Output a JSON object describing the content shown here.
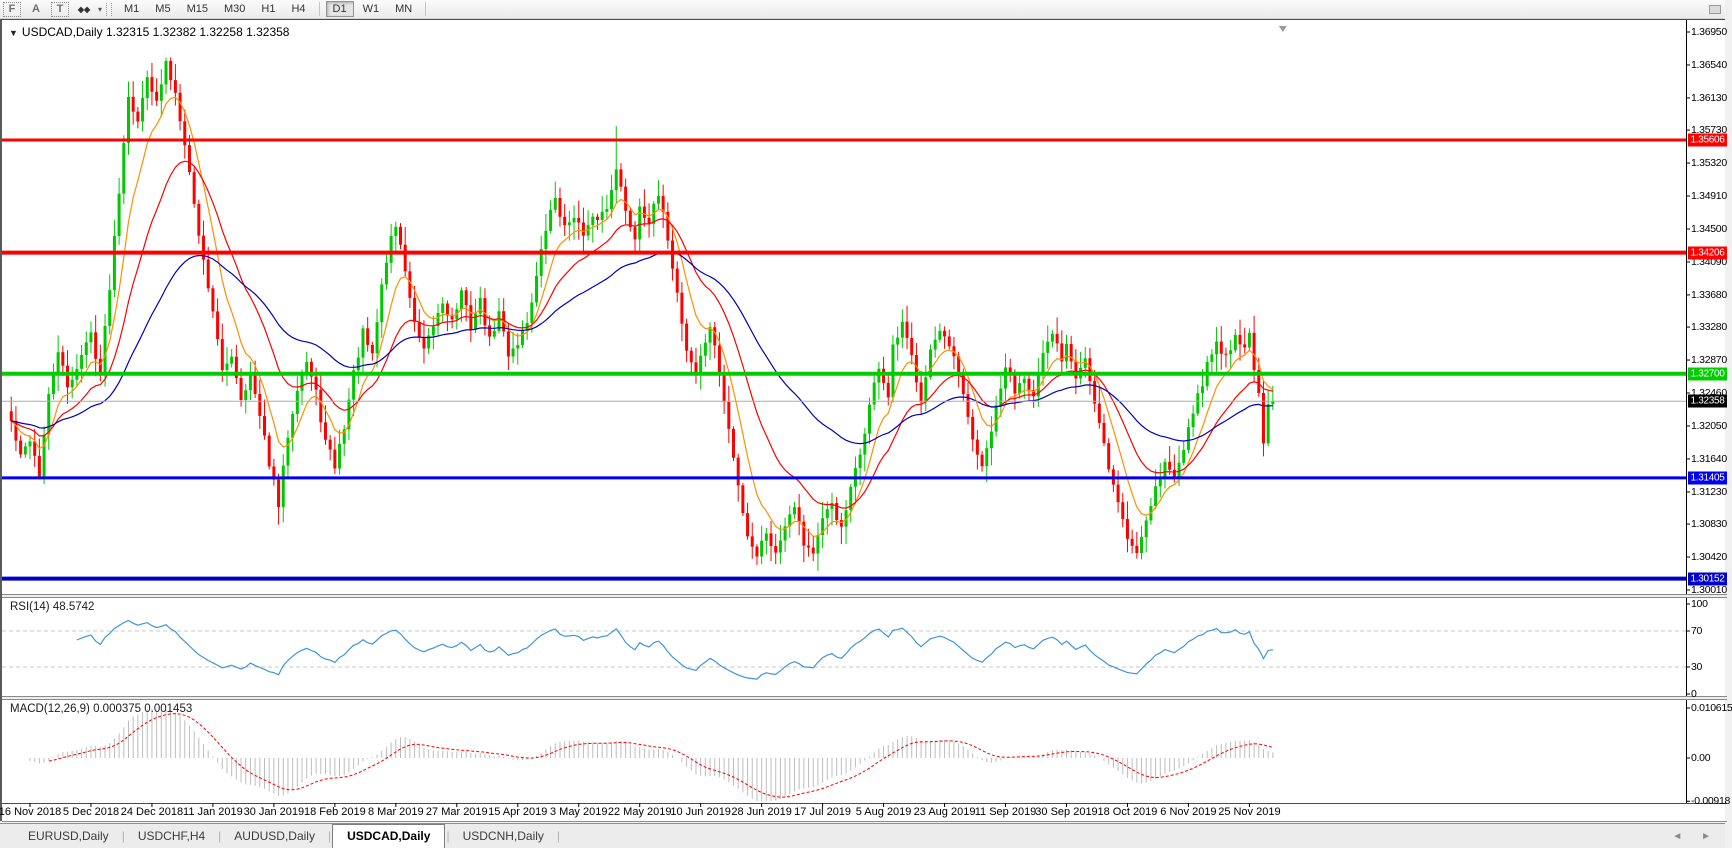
{
  "toolbar": {
    "icons": [
      {
        "name": "fibonacci-grid-icon",
        "glyph": "F"
      },
      {
        "name": "text-a-icon",
        "glyph": "A"
      },
      {
        "name": "text-label-icon",
        "glyph": "T"
      },
      {
        "name": "shapes-icon",
        "glyph": "◆◆"
      },
      {
        "name": "dropdown-caret",
        "glyph": "▾"
      }
    ],
    "timeframes": [
      "M1",
      "M5",
      "M15",
      "M30",
      "H1",
      "H4",
      "D1",
      "W1",
      "MN"
    ],
    "active_timeframe": "D1"
  },
  "chart": {
    "title_symbol": "USDCAD,Daily",
    "title_ohlc": "1.32315 1.32382 1.32258 1.32358",
    "dropdown_glyph": "▼"
  },
  "chart_data": {
    "type": "candlestick",
    "symbol": "USDCAD",
    "timeframe": "Daily",
    "quote": {
      "open": 1.32315,
      "high": 1.32382,
      "low": 1.32258,
      "close": 1.32358
    },
    "y_axis": {
      "top": 1.3695,
      "bottom": 1.3001,
      "tick_labels": [
        "1.36950",
        "1.36540",
        "1.36130",
        "1.35730",
        "1.35320",
        "1.34910",
        "1.34500",
        "1.34090",
        "1.33680",
        "1.33280",
        "1.32870",
        "1.32460",
        "1.32050",
        "1.31640",
        "1.31230",
        "1.30830",
        "1.30420",
        "1.30010"
      ]
    },
    "x_axis": {
      "tick_labels": [
        "16 Nov 2018",
        "5 Dec 2018",
        "24 Dec 2018",
        "11 Jan 2019",
        "30 Jan 2019",
        "18 Feb 2019",
        "8 Mar 2019",
        "27 Mar 2019",
        "15 Apr 2019",
        "3 May 2019",
        "22 May 2019",
        "10 Jun 2019",
        "28 Jun 2019",
        "17 Jul 2019",
        "5 Aug 2019",
        "23 Aug 2019",
        "11 Sep 2019",
        "30 Sep 2019",
        "18 Oct 2019",
        "6 Nov 2019",
        "25 Nov 2019"
      ],
      "bars_per_tick": 13,
      "first_tick_bar": 4
    },
    "num_bars": 270,
    "close_anchors": [
      [
        0,
        1.321
      ],
      [
        2,
        1.3165
      ],
      [
        4,
        1.319
      ],
      [
        6,
        1.3145
      ],
      [
        8,
        1.324
      ],
      [
        10,
        1.33
      ],
      [
        12,
        1.325
      ],
      [
        14,
        1.328
      ],
      [
        17,
        1.332
      ],
      [
        19,
        1.327
      ],
      [
        21,
        1.338
      ],
      [
        23,
        1.35
      ],
      [
        25,
        1.362
      ],
      [
        27,
        1.358
      ],
      [
        29,
        1.3645
      ],
      [
        31,
        1.3605
      ],
      [
        33,
        1.3655
      ],
      [
        35,
        1.362
      ],
      [
        37,
        1.356
      ],
      [
        39,
        1.348
      ],
      [
        41,
        1.341
      ],
      [
        43,
        1.335
      ],
      [
        45,
        1.327
      ],
      [
        47,
        1.3295
      ],
      [
        49,
        1.324
      ],
      [
        51,
        1.327
      ],
      [
        53,
        1.3215
      ],
      [
        55,
        1.316
      ],
      [
        57,
        1.3105
      ],
      [
        59,
        1.3195
      ],
      [
        61,
        1.3255
      ],
      [
        63,
        1.3285
      ],
      [
        65,
        1.3245
      ],
      [
        67,
        1.3185
      ],
      [
        69,
        1.3155
      ],
      [
        71,
        1.3205
      ],
      [
        73,
        1.327
      ],
      [
        75,
        1.332
      ],
      [
        77,
        1.329
      ],
      [
        79,
        1.338
      ],
      [
        81,
        1.344
      ],
      [
        82,
        1.3455
      ],
      [
        84,
        1.34
      ],
      [
        86,
        1.333
      ],
      [
        88,
        1.3295
      ],
      [
        90,
        1.333
      ],
      [
        92,
        1.336
      ],
      [
        94,
        1.3335
      ],
      [
        96,
        1.337
      ],
      [
        98,
        1.333
      ],
      [
        100,
        1.336
      ],
      [
        102,
        1.331
      ],
      [
        104,
        1.3345
      ],
      [
        106,
        1.3295
      ],
      [
        108,
        1.331
      ],
      [
        110,
        1.3335
      ],
      [
        112,
        1.339
      ],
      [
        114,
        1.345
      ],
      [
        116,
        1.349
      ],
      [
        118,
        1.345
      ],
      [
        120,
        1.347
      ],
      [
        122,
        1.344
      ],
      [
        124,
        1.346
      ],
      [
        127,
        1.3475
      ],
      [
        129,
        1.353
      ],
      [
        131,
        1.347
      ],
      [
        133,
        1.344
      ],
      [
        134,
        1.348
      ],
      [
        136,
        1.346
      ],
      [
        138,
        1.349
      ],
      [
        140,
        1.344
      ],
      [
        142,
        1.337
      ],
      [
        144,
        1.33
      ],
      [
        146,
        1.327
      ],
      [
        147,
        1.329
      ],
      [
        149,
        1.333
      ],
      [
        151,
        1.327
      ],
      [
        153,
        1.32
      ],
      [
        155,
        1.313
      ],
      [
        157,
        1.307
      ],
      [
        159,
        1.3045
      ],
      [
        161,
        1.3075
      ],
      [
        163,
        1.3045
      ],
      [
        165,
        1.3085
      ],
      [
        167,
        1.311
      ],
      [
        169,
        1.306
      ],
      [
        171,
        1.3048
      ],
      [
        173,
        1.3085
      ],
      [
        175,
        1.311
      ],
      [
        177,
        1.3075
      ],
      [
        179,
        1.3125
      ],
      [
        181,
        1.317
      ],
      [
        183,
        1.323
      ],
      [
        185,
        1.328
      ],
      [
        187,
        1.324
      ],
      [
        188,
        1.33
      ],
      [
        190,
        1.333
      ],
      [
        192,
        1.329
      ],
      [
        194,
        1.324
      ],
      [
        196,
        1.33
      ],
      [
        198,
        1.332
      ],
      [
        199,
        1.331
      ],
      [
        201,
        1.329
      ],
      [
        203,
        1.324
      ],
      [
        205,
        1.319
      ],
      [
        207,
        1.315
      ],
      [
        209,
        1.32
      ],
      [
        211,
        1.325
      ],
      [
        212,
        1.328
      ],
      [
        214,
        1.325
      ],
      [
        216,
        1.327
      ],
      [
        218,
        1.324
      ],
      [
        220,
        1.329
      ],
      [
        222,
        1.332
      ],
      [
        224,
        1.329
      ],
      [
        225,
        1.331
      ],
      [
        227,
        1.327
      ],
      [
        229,
        1.329
      ],
      [
        231,
        1.323
      ],
      [
        233,
        1.318
      ],
      [
        235,
        1.313
      ],
      [
        237,
        1.309
      ],
      [
        238,
        1.3065
      ],
      [
        240,
        1.3048
      ],
      [
        242,
        1.309
      ],
      [
        244,
        1.313
      ],
      [
        246,
        1.316
      ],
      [
        248,
        1.314
      ],
      [
        250,
        1.318
      ],
      [
        251,
        1.321
      ],
      [
        253,
        1.324
      ],
      [
        255,
        1.328
      ],
      [
        257,
        1.331
      ],
      [
        259,
        1.329
      ],
      [
        261,
        1.332
      ],
      [
        263,
        1.33
      ],
      [
        264,
        1.332
      ],
      [
        265,
        1.328
      ],
      [
        266,
        1.324
      ],
      [
        267,
        1.318
      ],
      [
        268,
        1.323
      ],
      [
        269,
        1.32358
      ]
    ],
    "wick_overrides": {
      "33": {
        "high": 1.3663
      },
      "129": {
        "high": 1.3578
      },
      "162": {
        "low": 1.3037
      },
      "240": {
        "low": 1.304
      }
    },
    "wick_seed": 42,
    "candle_up_color": "#00C800",
    "candle_down_color": "#FF0000",
    "moving_averages": [
      {
        "period": 8,
        "color": "#FF9000"
      },
      {
        "period": 20,
        "color": "#FF0000"
      },
      {
        "period": 50,
        "color": "#0000BB"
      }
    ],
    "hlines": [
      {
        "price": 1.35606,
        "label": "1.35606",
        "color": "#FF0000",
        "width": 3
      },
      {
        "price": 1.34206,
        "label": "1.34206",
        "color": "#FF0000",
        "width": 4
      },
      {
        "price": 1.327,
        "label": "1.32700",
        "color": "#00CC00",
        "width": 4
      },
      {
        "price": 1.31405,
        "label": "1.31405",
        "color": "#0000EE",
        "width": 3
      },
      {
        "price": 1.30152,
        "label": "1.30152",
        "color": "#0000CC",
        "width": 4
      }
    ],
    "current_price": {
      "value": 1.32358,
      "label": "1.32358",
      "line_color": "#ABABAB",
      "badge_bg": "#000000"
    },
    "rsi": {
      "label": "RSI(14)",
      "value": "48.5742",
      "period": 14,
      "levels": [
        70,
        30
      ],
      "axis_labels": [
        "100",
        "70",
        "30",
        "0"
      ],
      "line_color": "#3E96D6",
      "level_color": "#C8C8C8"
    },
    "macd": {
      "label": "MACD(12,26,9)",
      "value_main": "0.000375",
      "value_signal": "0.001453",
      "fast": 12,
      "slow": 26,
      "signal": 9,
      "axis_labels": [
        "0.010615",
        "0.00",
        "-0.00918"
      ],
      "histogram_color": "#BDBDBD",
      "signal_color": "#FF0000"
    }
  },
  "tabs": {
    "items": [
      "EURUSD,Daily",
      "USDCHF,H4",
      "AUDUSD,Daily",
      "USDCAD,Daily",
      "USDCNH,Daily"
    ],
    "active": "USDCAD,Daily",
    "scroll_arrows": "◄ ►"
  }
}
